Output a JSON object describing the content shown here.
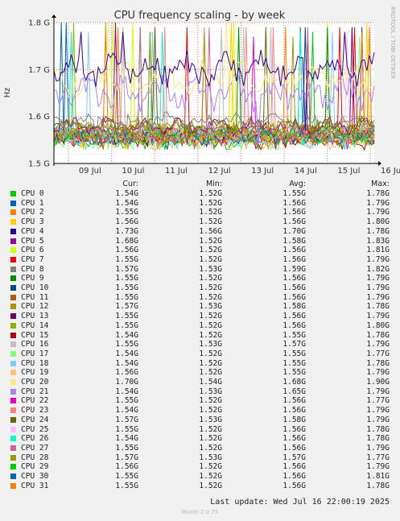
{
  "chart_data": {
    "type": "line",
    "title": "CPU frequency scaling - by week",
    "ylabel": "Hz",
    "side_label": "RRDTOOL / TOBI OETIKER",
    "y_ticks": [
      "1.5 G",
      "1.6 G",
      "1.7 G",
      "1.8 G"
    ],
    "ylim": [
      1.5,
      1.8
    ],
    "x_ticks": [
      "09 Jul",
      "10 Jul",
      "11 Jul",
      "12 Jul",
      "13 Jul",
      "14 Jul",
      "15 Jul",
      "16 Jul"
    ],
    "grid": true,
    "series_bands": {
      "upper": {
        "series": [
          "CPU 4"
        ],
        "mean": 1.7,
        "min": 1.56,
        "max": 1.78
      },
      "middle": {
        "series": [
          "CPU 20",
          "CPU 21"
        ],
        "mean": 1.67,
        "min": 1.53,
        "max": 1.9
      },
      "lower": {
        "series": [
          "CPU 0-3",
          "CPU 5-19",
          "CPU 22-31"
        ],
        "mean": 1.56,
        "min": 1.52,
        "max": 1.83
      }
    }
  },
  "legend": {
    "headers": {
      "cur": "Cur:",
      "min": "Min:",
      "avg": "Avg:",
      "max": "Max:"
    },
    "rows": [
      {
        "name": "CPU 0",
        "color": "#00cc00",
        "cur": "1.54G",
        "min": "1.52G",
        "avg": "1.55G",
        "max": "1.78G"
      },
      {
        "name": "CPU 1",
        "color": "#0066b3",
        "cur": "1.54G",
        "min": "1.52G",
        "avg": "1.56G",
        "max": "1.79G"
      },
      {
        "name": "CPU 2",
        "color": "#ff8000",
        "cur": "1.55G",
        "min": "1.52G",
        "avg": "1.56G",
        "max": "1.79G"
      },
      {
        "name": "CPU 3",
        "color": "#ffcc00",
        "cur": "1.56G",
        "min": "1.52G",
        "avg": "1.56G",
        "max": "1.80G"
      },
      {
        "name": "CPU 4",
        "color": "#330099",
        "cur": "1.73G",
        "min": "1.56G",
        "avg": "1.70G",
        "max": "1.78G"
      },
      {
        "name": "CPU 5",
        "color": "#990099",
        "cur": "1.68G",
        "min": "1.52G",
        "avg": "1.58G",
        "max": "1.83G"
      },
      {
        "name": "CPU 6",
        "color": "#ccff00",
        "cur": "1.56G",
        "min": "1.52G",
        "avg": "1.56G",
        "max": "1.81G"
      },
      {
        "name": "CPU 7",
        "color": "#ff0000",
        "cur": "1.55G",
        "min": "1.52G",
        "avg": "1.56G",
        "max": "1.79G"
      },
      {
        "name": "CPU 8",
        "color": "#808080",
        "cur": "1.57G",
        "min": "1.53G",
        "avg": "1.59G",
        "max": "1.82G"
      },
      {
        "name": "CPU 9",
        "color": "#008f00",
        "cur": "1.55G",
        "min": "1.52G",
        "avg": "1.56G",
        "max": "1.79G"
      },
      {
        "name": "CPU 10",
        "color": "#00487d",
        "cur": "1.55G",
        "min": "1.52G",
        "avg": "1.56G",
        "max": "1.79G"
      },
      {
        "name": "CPU 11",
        "color": "#b35a00",
        "cur": "1.55G",
        "min": "1.52G",
        "avg": "1.56G",
        "max": "1.79G"
      },
      {
        "name": "CPU 12",
        "color": "#b38f00",
        "cur": "1.57G",
        "min": "1.53G",
        "avg": "1.58G",
        "max": "1.78G"
      },
      {
        "name": "CPU 13",
        "color": "#6b006b",
        "cur": "1.55G",
        "min": "1.52G",
        "avg": "1.56G",
        "max": "1.79G"
      },
      {
        "name": "CPU 14",
        "color": "#8fb300",
        "cur": "1.55G",
        "min": "1.52G",
        "avg": "1.56G",
        "max": "1.80G"
      },
      {
        "name": "CPU 15",
        "color": "#b30000",
        "cur": "1.54G",
        "min": "1.52G",
        "avg": "1.55G",
        "max": "1.78G"
      },
      {
        "name": "CPU 16",
        "color": "#bebebe",
        "cur": "1.55G",
        "min": "1.53G",
        "avg": "1.57G",
        "max": "1.79G"
      },
      {
        "name": "CPU 17",
        "color": "#80ff80",
        "cur": "1.54G",
        "min": "1.52G",
        "avg": "1.55G",
        "max": "1.77G"
      },
      {
        "name": "CPU 18",
        "color": "#80c9ff",
        "cur": "1.54G",
        "min": "1.52G",
        "avg": "1.55G",
        "max": "1.78G"
      },
      {
        "name": "CPU 19",
        "color": "#ffc080",
        "cur": "1.56G",
        "min": "1.52G",
        "avg": "1.55G",
        "max": "1.79G"
      },
      {
        "name": "CPU 20",
        "color": "#ffe680",
        "cur": "1.70G",
        "min": "1.54G",
        "avg": "1.68G",
        "max": "1.90G"
      },
      {
        "name": "CPU 21",
        "color": "#aa80ff",
        "cur": "1.54G",
        "min": "1.53G",
        "avg": "1.65G",
        "max": "1.79G"
      },
      {
        "name": "CPU 22",
        "color": "#ee00cc",
        "cur": "1.55G",
        "min": "1.52G",
        "avg": "1.56G",
        "max": "1.77G"
      },
      {
        "name": "CPU 23",
        "color": "#ff8080",
        "cur": "1.54G",
        "min": "1.52G",
        "avg": "1.56G",
        "max": "1.79G"
      },
      {
        "name": "CPU 24",
        "color": "#666600",
        "cur": "1.57G",
        "min": "1.53G",
        "avg": "1.58G",
        "max": "1.79G"
      },
      {
        "name": "CPU 25",
        "color": "#ffbfff",
        "cur": "1.55G",
        "min": "1.52G",
        "avg": "1.56G",
        "max": "1.78G"
      },
      {
        "name": "CPU 26",
        "color": "#00ffcc",
        "cur": "1.54G",
        "min": "1.52G",
        "avg": "1.56G",
        "max": "1.78G"
      },
      {
        "name": "CPU 27",
        "color": "#cc6699",
        "cur": "1.55G",
        "min": "1.52G",
        "avg": "1.56G",
        "max": "1.79G"
      },
      {
        "name": "CPU 28",
        "color": "#999900",
        "cur": "1.57G",
        "min": "1.53G",
        "avg": "1.57G",
        "max": "1.77G"
      },
      {
        "name": "CPU 29",
        "color": "#00cc00",
        "cur": "1.56G",
        "min": "1.52G",
        "avg": "1.56G",
        "max": "1.79G"
      },
      {
        "name": "CPU 30",
        "color": "#0066b3",
        "cur": "1.55G",
        "min": "1.52G",
        "avg": "1.56G",
        "max": "1.81G"
      },
      {
        "name": "CPU 31",
        "color": "#ff8000",
        "cur": "1.55G",
        "min": "1.52G",
        "avg": "1.56G",
        "max": "1.78G"
      }
    ]
  },
  "footer": {
    "last_update": "Last update: Wed Jul 16 22:00:19 2025",
    "munin_version": "Munin 2.0.75"
  }
}
